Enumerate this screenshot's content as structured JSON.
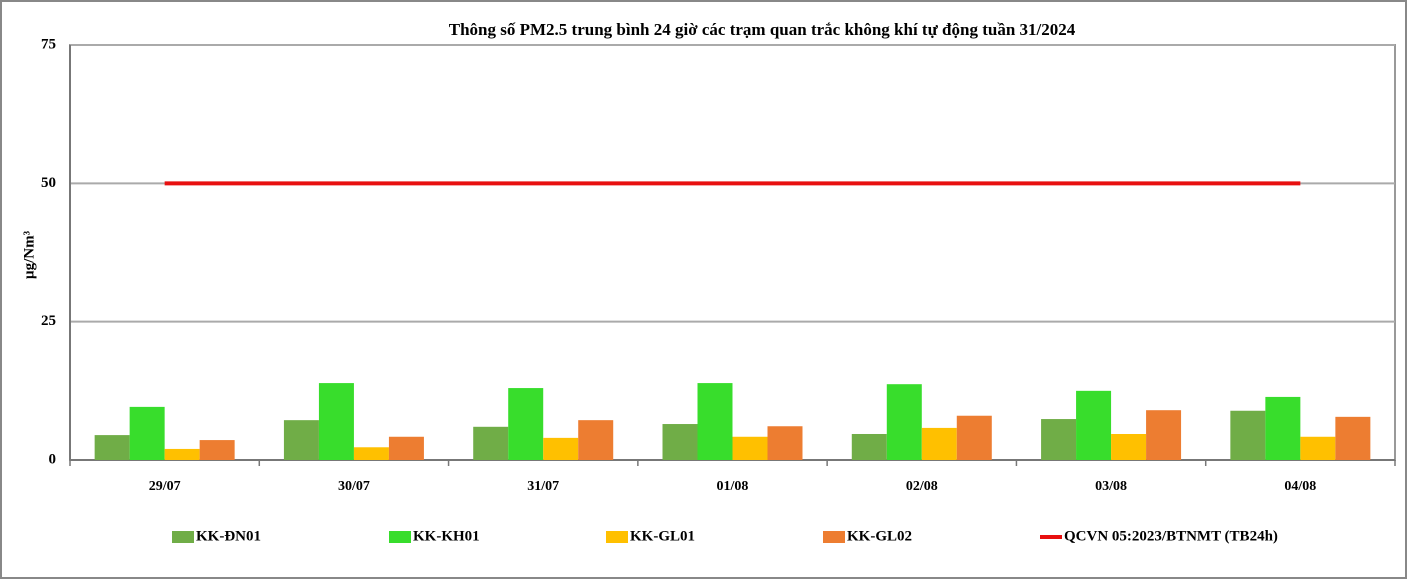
{
  "chart_data": {
    "type": "bar",
    "title": "Thông số PM2.5 trung bình 24 giờ các trạm quan trắc không khí tự động tuần 31/2024",
    "y_label": "µg/Nm³",
    "categories": [
      "29/07",
      "30/07",
      "31/07",
      "01/08",
      "02/08",
      "03/08",
      "04/08"
    ],
    "series": [
      {
        "name": "KK-ĐN01",
        "color": "#70ad47",
        "values": [
          4.5,
          7.2,
          6.0,
          6.5,
          4.7,
          7.4,
          8.9
        ]
      },
      {
        "name": "KK-KH01",
        "color": "#38dd2c",
        "values": [
          9.6,
          13.9,
          13.0,
          13.9,
          13.7,
          12.5,
          11.4
        ]
      },
      {
        "name": "KK-GL01",
        "color": "#ffc000",
        "values": [
          2.0,
          2.3,
          4.0,
          4.2,
          5.8,
          4.7,
          4.2
        ]
      },
      {
        "name": "KK-GL02",
        "color": "#ed7d31",
        "values": [
          3.6,
          4.2,
          7.2,
          6.1,
          8.0,
          9.0,
          7.8
        ]
      },
      {
        "name": "QCVN 05:2023/BTNMT (TB24h)",
        "color": "#e81010",
        "type": "line",
        "values": [
          50,
          50,
          50,
          50,
          50,
          50,
          50
        ]
      }
    ],
    "ylim": [
      0,
      75
    ],
    "yticks": [
      0,
      25,
      50,
      75
    ],
    "grid": true,
    "legend": "bottom"
  }
}
